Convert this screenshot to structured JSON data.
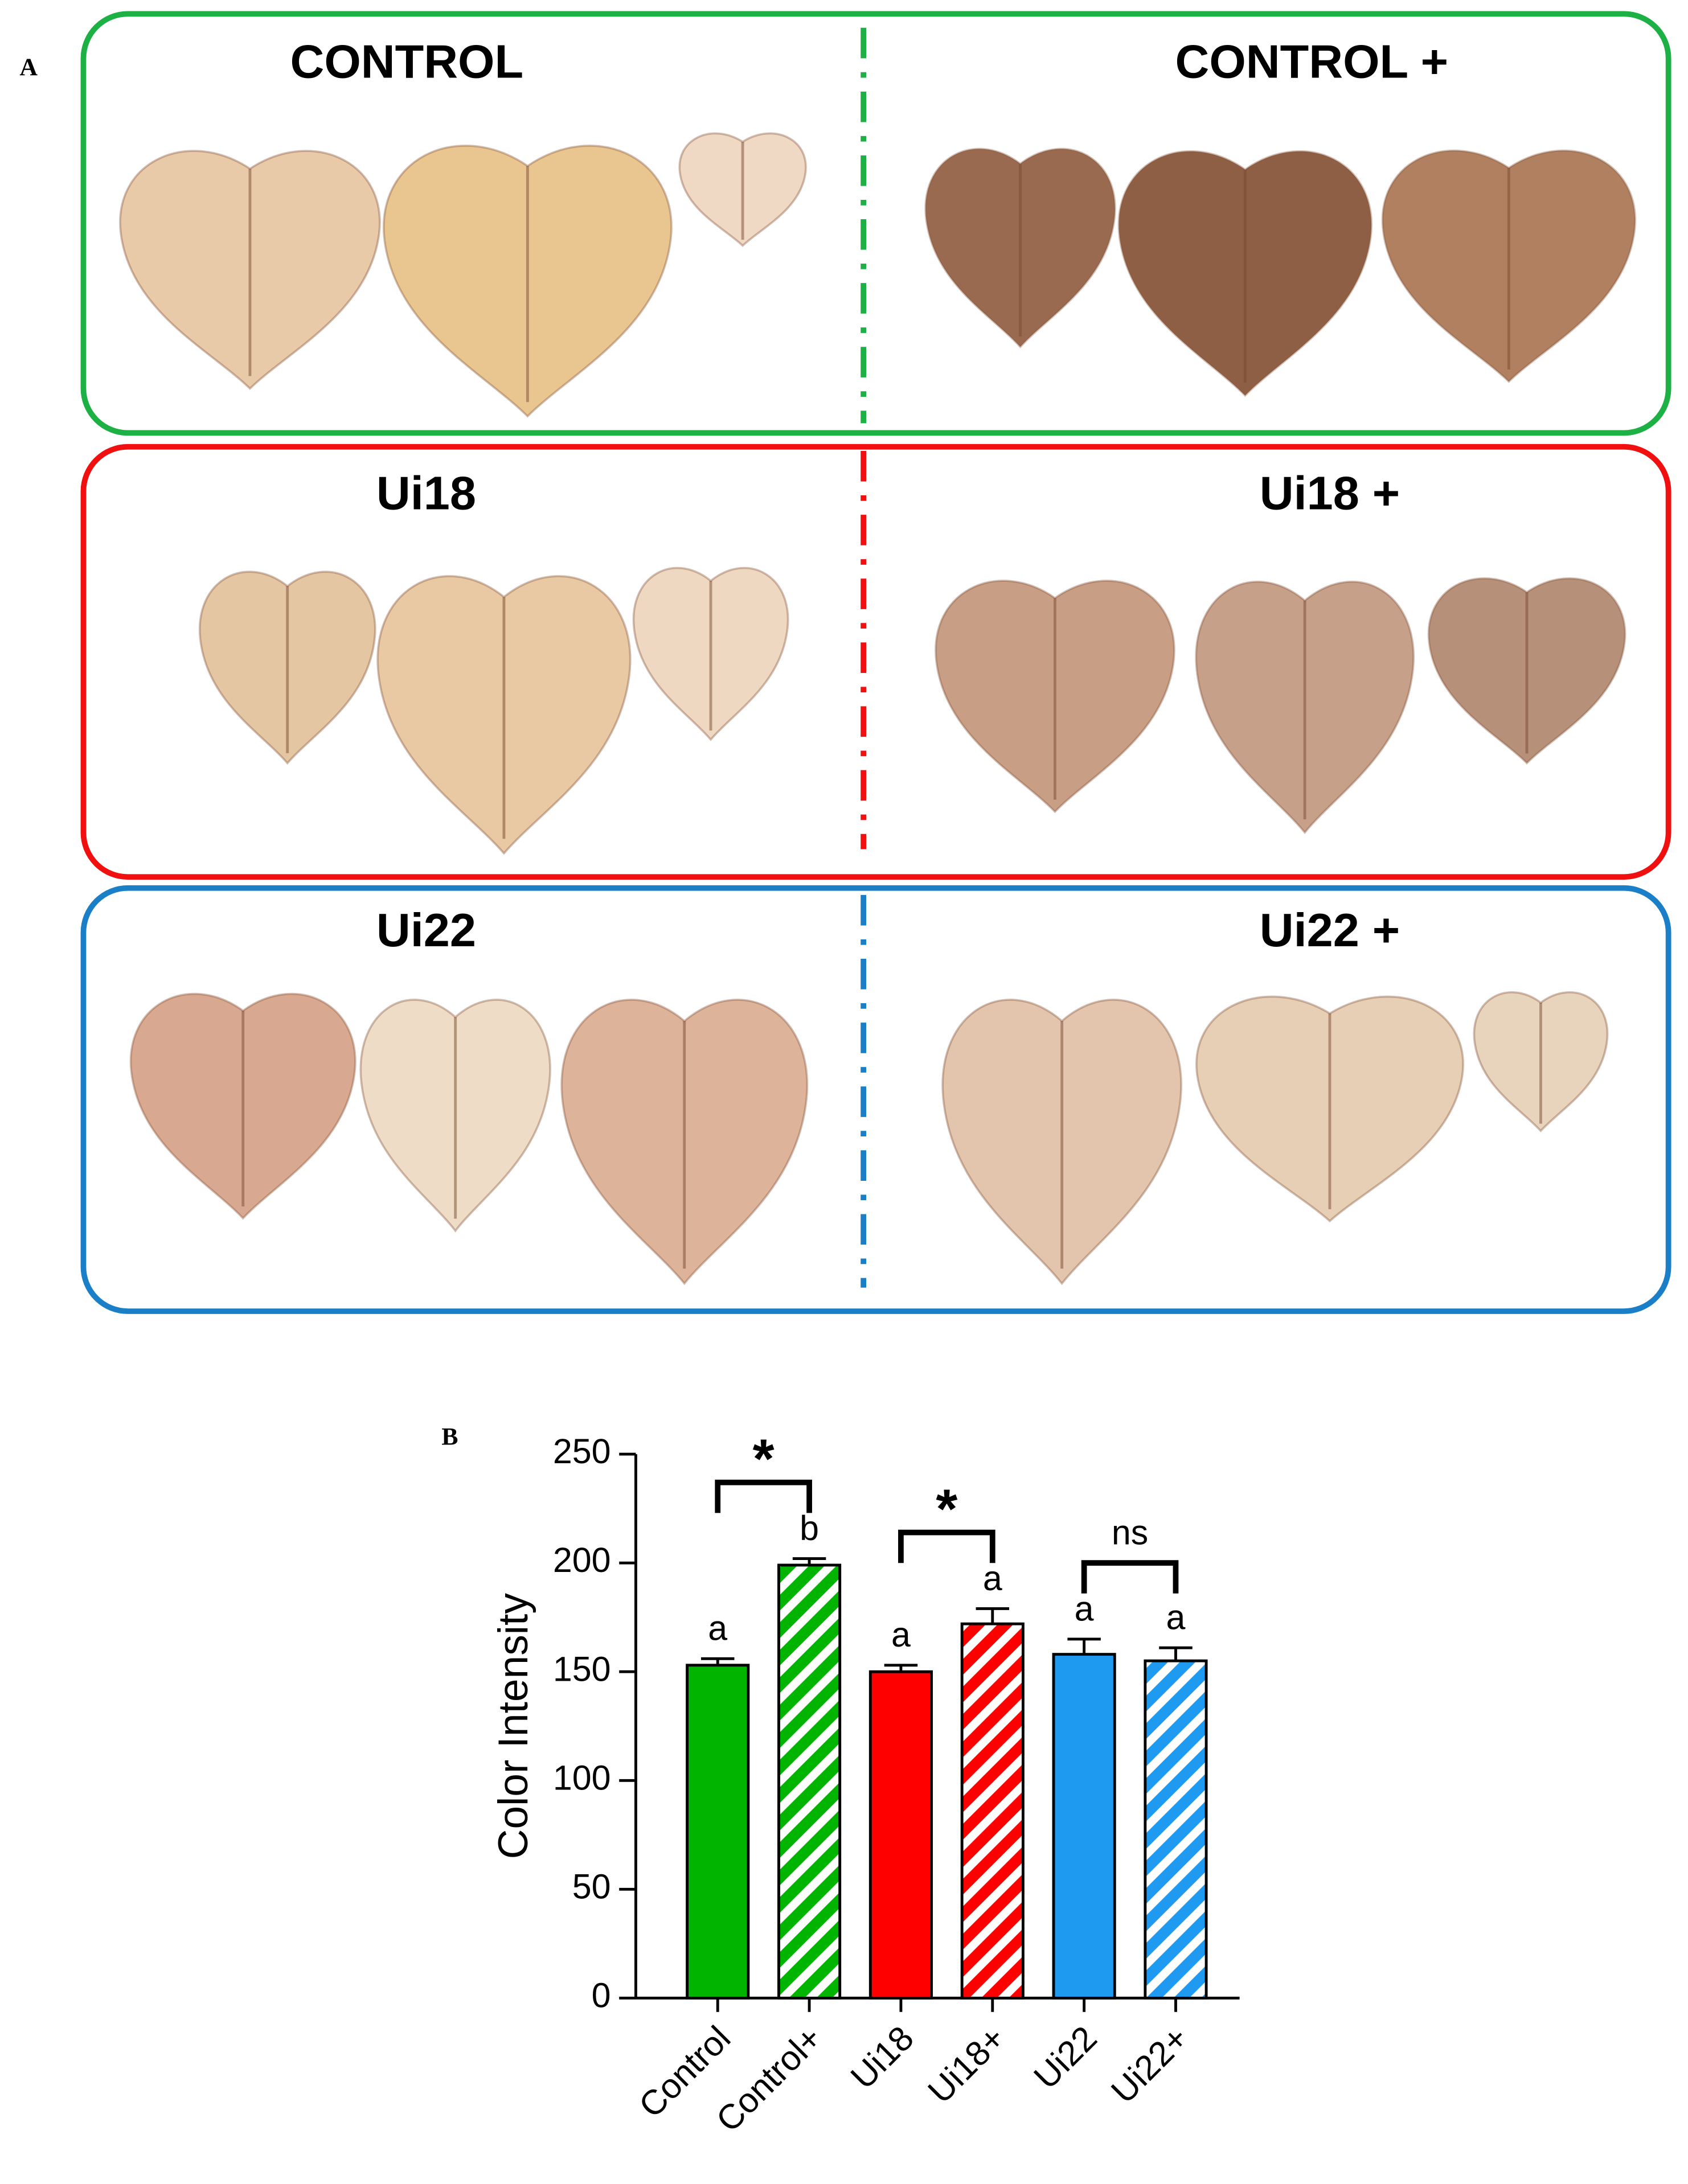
{
  "panel_a": {
    "label": "A",
    "groups": [
      "CONTROL",
      "CONTROL +",
      "Ui18",
      "Ui18 +",
      "Ui22",
      "Ui22 +"
    ]
  },
  "chart_data": {
    "type": "bar",
    "panel_label": "B",
    "y_label": "Color Intensity",
    "categories": [
      "Control",
      "Control+",
      "Ui18",
      "Ui18+",
      "Ui22",
      "Ui22+"
    ],
    "values": [
      153,
      199,
      150,
      172,
      158,
      155
    ],
    "errors": [
      3,
      3,
      3,
      7,
      7,
      6
    ],
    "colors": [
      "#00b400",
      "#00b400",
      "#ff0000",
      "#ff0000",
      "#1e9bf0",
      "#1e9bf0"
    ],
    "hatched": [
      false,
      true,
      false,
      true,
      false,
      true
    ],
    "letters": [
      "a",
      "b",
      "a",
      "a",
      "a",
      "a"
    ],
    "comparisons": [
      {
        "pair": [
          0,
          1
        ],
        "label": "*"
      },
      {
        "pair": [
          2,
          3
        ],
        "label": "*"
      },
      {
        "pair": [
          4,
          5
        ],
        "label": "ns"
      }
    ],
    "ylim": [
      0,
      250
    ],
    "yticks": [
      0,
      50,
      100,
      150,
      200,
      250
    ]
  }
}
